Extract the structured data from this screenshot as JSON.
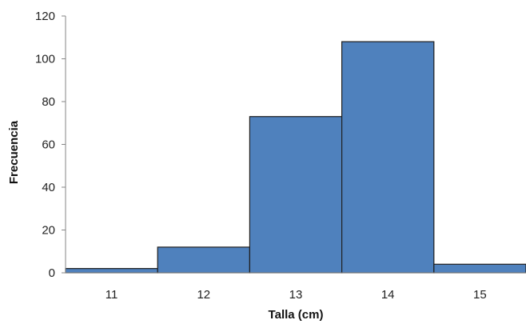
{
  "chart_data": {
    "type": "bar",
    "title": "",
    "xlabel": "Talla (cm)",
    "ylabel": "Frecuencia",
    "categories": [
      "11",
      "12",
      "13",
      "14",
      "15"
    ],
    "values": [
      2,
      12,
      73,
      108,
      4
    ],
    "ylim": [
      0,
      120
    ],
    "yticks": [
      "0",
      "20",
      "40",
      "60",
      "80",
      "100",
      "120"
    ],
    "grid": false,
    "legend": "none",
    "bar_color": "#4f81bd",
    "bar_edge_color": "#1f1f1f",
    "axis_color": "#868686"
  }
}
